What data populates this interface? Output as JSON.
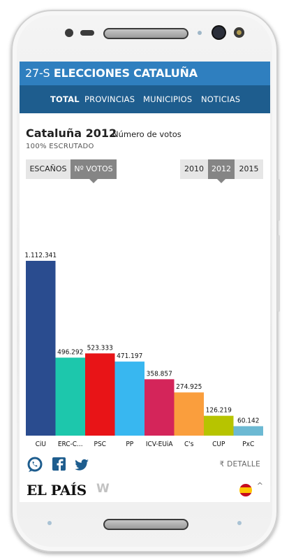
{
  "header": {
    "title_prefix": "27-S",
    "title_main": "ELECCIONES CATALUÑA",
    "tabs": [
      "TOTAL",
      "PROVINCIAS",
      "MUNICIPIOS",
      "NOTICIAS"
    ],
    "active_tab": "TOTAL"
  },
  "chart_block": {
    "title": "Cataluña 2012",
    "subtitle": "Número de votos",
    "scrutiny": "100% ESCRUTADO",
    "mode_buttons": [
      "ESCAÑOS",
      "Nº VOTOS"
    ],
    "selected_mode": "Nº VOTOS",
    "year_buttons": [
      "2010",
      "2012",
      "2015"
    ],
    "selected_year": "2012"
  },
  "chart_data": {
    "type": "bar",
    "title": "Cataluña 2012",
    "subtitle": "Número de votos",
    "categories": [
      "CiU",
      "ERC-C...",
      "PSC",
      "PP",
      "ICV-EUiA",
      "C's",
      "CUP",
      "PxC"
    ],
    "values": [
      1112341,
      496292,
      523333,
      471197,
      358857,
      274925,
      126219,
      60142
    ],
    "value_labels": [
      "1.112.341",
      "496.292",
      "523.333",
      "471.197",
      "358.857",
      "274.925",
      "126.219",
      "60.142"
    ],
    "colors": [
      "#2a4c8f",
      "#1dc7ac",
      "#e81417",
      "#38b7f0",
      "#d4255a",
      "#fa9e3d",
      "#b7c400",
      "#6cb9d3"
    ],
    "ylim": [
      0,
      1112341
    ],
    "grid": false,
    "legend": "none"
  },
  "footer": {
    "share_icons": [
      "whatsapp-icon",
      "facebook-icon",
      "twitter-icon"
    ],
    "detail_label": "DETALLE",
    "logo_text": "EL PAÍS",
    "secondary_logo": "W"
  },
  "colors": {
    "title_bar": "#2f7fbf",
    "nav_bar": "#1e5d8e"
  }
}
